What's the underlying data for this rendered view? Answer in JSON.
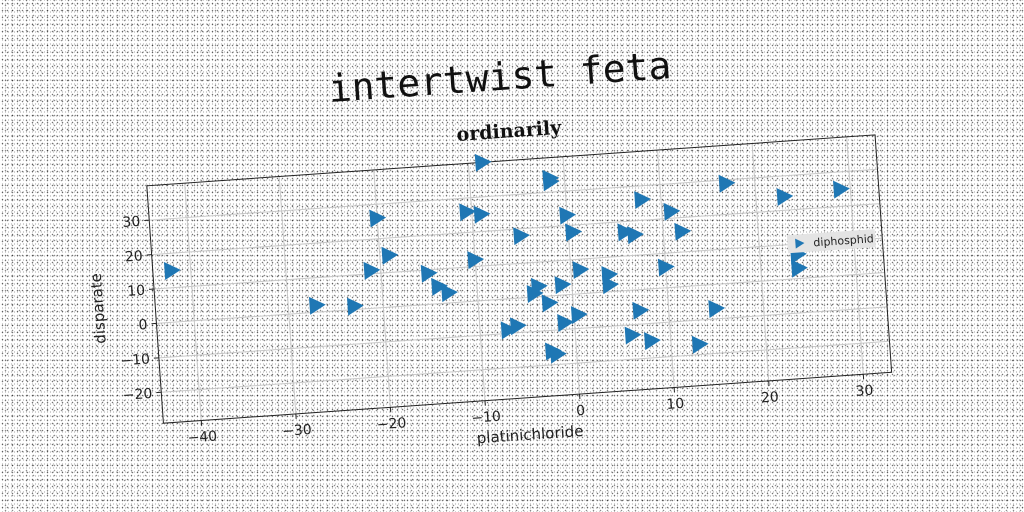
{
  "chart_data": {
    "type": "scatter",
    "title": "intertwist feta",
    "subtitle": "ordinarily",
    "xlabel": "platinichloride",
    "ylabel": "disparate",
    "xlim": [
      -44,
      33
    ],
    "ylim": [
      -29,
      40
    ],
    "xticks": [
      -40,
      -30,
      -20,
      -10,
      0,
      10,
      20,
      30
    ],
    "yticks": [
      -20,
      -10,
      0,
      10,
      20,
      30
    ],
    "grid": true,
    "legend_position": "right",
    "marker": "triangle-right",
    "series": [
      {
        "name": "diphosphid",
        "color": "#1f77b4",
        "x": [
          -42,
          -27,
          -23,
          -20,
          -19,
          -21,
          -15,
          -14,
          -13,
          -10.5,
          -10,
          -9,
          -8.5,
          -7,
          -6,
          -5,
          -4,
          -3.5,
          -2.5,
          -2.5,
          -2,
          -1.5,
          -1.5,
          -1,
          -1,
          0,
          0.5,
          0.5,
          0.5,
          1,
          4,
          4,
          6,
          6,
          7,
          7,
          8,
          8,
          10,
          11,
          12,
          13,
          15,
          17,
          23,
          24,
          24,
          29
        ],
        "y": [
          15,
          2,
          1,
          26,
          15,
          11,
          9,
          5,
          3,
          26,
          12,
          25,
          40,
          -9,
          -8,
          18,
          1,
          3,
          -16,
          -2,
          -17,
          33,
          34,
          -8,
          3,
          23,
          18,
          18,
          -6,
          7,
          5,
          2,
          17,
          -13,
          -6,
          16,
          -15,
          26,
          6,
          22,
          16,
          -17,
          -7,
          29,
          24,
          3,
          7,
          25
        ]
      }
    ]
  }
}
